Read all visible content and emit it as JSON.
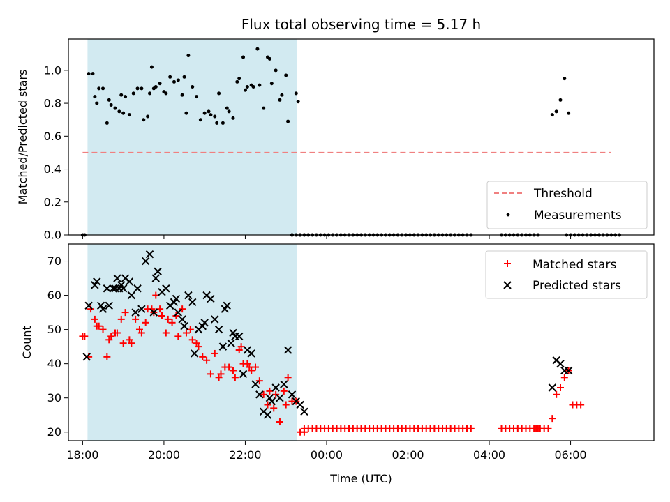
{
  "chart_data": [
    {
      "type": "scatter",
      "title": "Flux total observing time = 5.17 h",
      "xlabel": "",
      "ylabel": "Matched/Predicted stars",
      "xlim": [
        -0.35,
        14.05
      ],
      "ylim": [
        0.0,
        1.19
      ],
      "yticks": [
        0.0,
        0.2,
        0.4,
        0.6,
        0.8,
        1.0
      ],
      "ytick_labels": [
        "0.0",
        "0.2",
        "0.4",
        "0.6",
        "0.8",
        "1.0"
      ],
      "x_unit": "hours after 18:00 UTC",
      "shaded_span": [
        0.12,
        5.27
      ],
      "legend": {
        "location": "lower-right",
        "entries": [
          "Threshold",
          "Measurements"
        ]
      },
      "threshold": {
        "name": "Threshold",
        "value": 0.5,
        "x": [
          0.0,
          13.0
        ],
        "color": "#f08080"
      },
      "measurements": {
        "name": "Measurements",
        "color": "#000000",
        "x": [
          0.0,
          0.05,
          0.15,
          0.25,
          0.3,
          0.35,
          0.4,
          0.5,
          0.6,
          0.65,
          0.7,
          0.8,
          0.9,
          0.95,
          1.0,
          1.05,
          1.15,
          1.25,
          1.35,
          1.45,
          1.5,
          1.6,
          1.65,
          1.7,
          1.75,
          1.8,
          1.9,
          2.0,
          2.05,
          2.15,
          2.25,
          2.35,
          2.45,
          2.5,
          2.55,
          2.6,
          2.7,
          2.8,
          2.9,
          3.0,
          3.1,
          3.15,
          3.25,
          3.3,
          3.35,
          3.45,
          3.55,
          3.6,
          3.7,
          3.8,
          3.85,
          3.95,
          4.0,
          4.05,
          4.15,
          4.2,
          4.3,
          4.35,
          4.45,
          4.55,
          4.6,
          4.65,
          4.75,
          4.85,
          4.9,
          5.0,
          5.05,
          5.15,
          5.25,
          5.3,
          5.35,
          5.45,
          5.55,
          11.55,
          11.65,
          11.75,
          11.85,
          11.95
        ],
        "y": [
          0.0,
          0.0,
          0.98,
          0.98,
          0.84,
          0.8,
          0.89,
          0.89,
          0.68,
          0.82,
          0.79,
          0.77,
          0.75,
          0.85,
          0.74,
          0.84,
          0.73,
          0.86,
          0.89,
          0.89,
          0.7,
          0.72,
          0.86,
          1.02,
          0.89,
          0.9,
          0.92,
          0.87,
          0.86,
          0.96,
          0.93,
          0.94,
          0.85,
          0.96,
          0.74,
          1.09,
          0.9,
          0.84,
          0.7,
          0.74,
          0.75,
          0.73,
          0.72,
          0.68,
          0.86,
          0.68,
          0.77,
          0.75,
          0.71,
          0.93,
          0.95,
          1.08,
          0.88,
          0.9,
          0.91,
          0.9,
          1.13,
          0.91,
          0.77,
          1.08,
          1.07,
          0.92,
          1.0,
          0.82,
          0.85,
          0.97,
          0.69,
          0.0,
          0.86,
          0.81,
          0.0,
          0.0,
          0.0,
          0.73,
          0.75,
          0.82,
          0.95,
          0.74
        ],
        "zero_x_ranges": [
          [
            5.15,
            9.55
          ],
          [
            10.3,
            11.25
          ],
          [
            11.9,
            13.15
          ]
        ],
        "zero_x_step": 0.1
      }
    },
    {
      "type": "scatter",
      "title": "",
      "xlabel": "Time (UTC)",
      "ylabel": "Count",
      "xlim": [
        -0.35,
        14.05
      ],
      "ylim": [
        17.5,
        75.0
      ],
      "yticks": [
        20,
        30,
        40,
        50,
        60,
        70
      ],
      "ytick_labels": [
        "20",
        "30",
        "40",
        "50",
        "60",
        "70"
      ],
      "xticks": [
        0,
        2,
        4,
        6,
        8,
        10,
        12
      ],
      "xtick_labels": [
        "18:00",
        "20:00",
        "22:00",
        "00:00",
        "02:00",
        "04:00",
        "06:00"
      ],
      "x_unit": "hours after 18:00 UTC",
      "shaded_span": [
        0.12,
        5.27
      ],
      "legend": {
        "location": "upper-right",
        "entries": [
          "Matched stars",
          "Predicted stars"
        ]
      },
      "series": [
        {
          "name": "Matched stars",
          "marker": "plus",
          "color": "#ff0000",
          "x": [
            0.0,
            0.05,
            0.15,
            0.2,
            0.3,
            0.35,
            0.4,
            0.5,
            0.6,
            0.65,
            0.7,
            0.8,
            0.85,
            0.95,
            1.0,
            1.05,
            1.15,
            1.2,
            1.3,
            1.4,
            1.45,
            1.55,
            1.6,
            1.7,
            1.75,
            1.8,
            1.9,
            1.95,
            2.05,
            2.1,
            2.2,
            2.3,
            2.35,
            2.45,
            2.55,
            2.65,
            2.7,
            2.8,
            2.85,
            2.95,
            3.05,
            3.15,
            3.25,
            3.35,
            3.4,
            3.5,
            3.6,
            3.7,
            3.75,
            3.85,
            3.9,
            3.95,
            4.05,
            4.1,
            4.15,
            4.25,
            4.35,
            4.45,
            4.55,
            4.6,
            4.7,
            4.75,
            4.85,
            4.95,
            5.0,
            5.05,
            5.15,
            5.25,
            5.35,
            5.45,
            11.55,
            11.65,
            11.75,
            11.85,
            11.95,
            12.05,
            12.15,
            12.25
          ],
          "y": [
            48,
            48,
            42,
            56,
            53,
            51,
            51,
            50,
            42,
            47,
            48,
            49,
            49,
            53,
            46,
            55,
            47,
            46,
            53,
            50,
            49,
            52,
            56,
            56,
            55,
            60,
            56,
            54,
            49,
            53,
            52,
            54,
            48,
            56,
            49,
            50,
            47,
            46,
            45,
            42,
            41,
            37,
            43,
            36,
            37,
            39,
            39,
            38,
            36,
            44,
            45,
            40,
            40,
            39,
            38,
            39,
            35,
            31,
            28,
            32,
            27,
            31,
            23,
            32,
            28,
            36,
            29,
            29,
            20,
            20,
            24,
            31,
            33,
            36,
            38,
            28,
            28,
            28
          ],
          "flat_x_ranges": [
            [
              5.45,
              9.55
            ],
            [
              10.3,
              11.25
            ],
            [
              11.15,
              11.45
            ]
          ],
          "flat_value": 21,
          "flat_x_step": 0.1
        },
        {
          "name": "Predicted stars",
          "marker": "x",
          "color": "#000000",
          "x": [
            0.1,
            0.15,
            0.3,
            0.35,
            0.45,
            0.5,
            0.6,
            0.65,
            0.75,
            0.8,
            0.85,
            0.9,
            0.95,
            1.0,
            1.05,
            1.15,
            1.2,
            1.3,
            1.35,
            1.45,
            1.55,
            1.65,
            1.75,
            1.8,
            1.85,
            1.95,
            2.05,
            2.15,
            2.25,
            2.3,
            2.35,
            2.45,
            2.5,
            2.6,
            2.7,
            2.75,
            2.85,
            2.95,
            3.0,
            3.05,
            3.15,
            3.25,
            3.35,
            3.45,
            3.5,
            3.55,
            3.65,
            3.7,
            3.75,
            3.85,
            3.95,
            4.05,
            4.15,
            4.25,
            4.35,
            4.45,
            4.55,
            4.6,
            4.65,
            4.75,
            4.85,
            4.95,
            5.05,
            5.15,
            5.25,
            5.35,
            5.45,
            11.55,
            11.65,
            11.75,
            11.85,
            11.95
          ],
          "y": [
            42,
            57,
            63,
            64,
            57,
            56,
            62,
            57,
            62,
            62,
            65,
            62,
            63,
            62,
            65,
            64,
            60,
            55,
            62,
            56,
            70,
            72,
            55,
            65,
            67,
            61,
            62,
            57,
            58,
            59,
            55,
            53,
            51,
            60,
            58,
            43,
            50,
            51,
            52,
            60,
            59,
            53,
            50,
            45,
            56,
            57,
            46,
            49,
            48,
            48,
            37,
            44,
            43,
            34,
            31,
            26,
            25,
            30,
            29,
            33,
            30,
            34,
            44,
            31,
            29,
            28,
            26,
            33,
            41,
            40,
            38,
            38
          ]
        }
      ]
    }
  ]
}
